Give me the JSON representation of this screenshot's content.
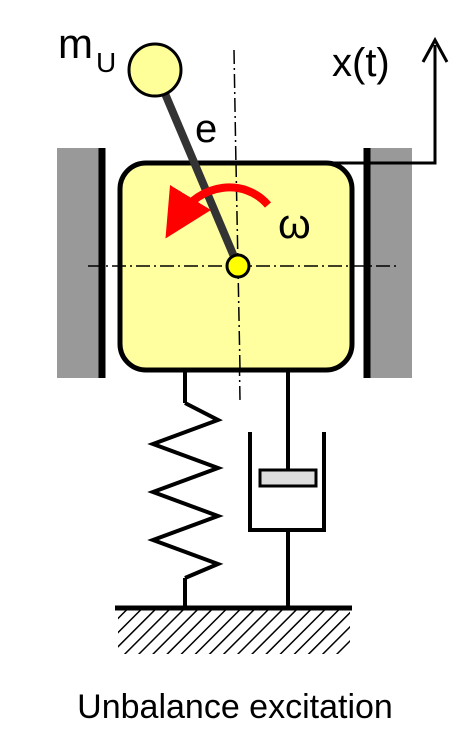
{
  "labels": {
    "mass": "m",
    "mass_sub": "U",
    "eccentricity": "e",
    "omega": "ω",
    "displacement": "x(t)",
    "caption": "Unbalance excitation"
  },
  "colors": {
    "body_fill": "#ffffa0",
    "unbalance_mass_fill": "#ffff99",
    "center_dot_fill": "#ffff00",
    "rotation_arrow": "#ff0000",
    "guide_fill": "#999999",
    "stroke": "#000000"
  },
  "icons": {
    "rotation": "curved-arrow-icon",
    "displacement": "up-arrow-icon"
  }
}
